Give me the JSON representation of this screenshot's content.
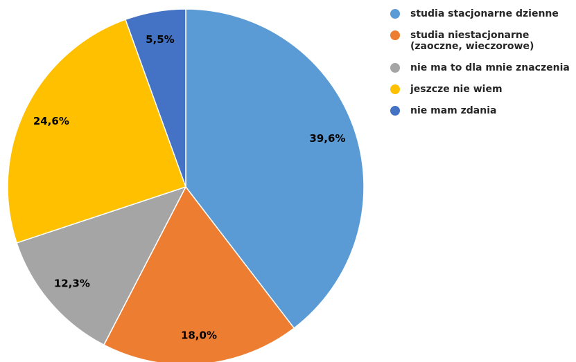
{
  "chart_data": {
    "type": "pie",
    "title": "",
    "start_angle_deg": 0,
    "direction": "clockwise",
    "legend_position": "right",
    "slices": [
      {
        "label": "studia stacjonarne dzienne",
        "value": 39.6,
        "display": "39,6%",
        "color": "#5B9BD5"
      },
      {
        "label": "studia niestacjonarne (zaoczne, wieczorowe)",
        "value": 18.0,
        "display": "18,0%",
        "color": "#ED7D31"
      },
      {
        "label": "nie ma to dla mnie znaczenia",
        "value": 12.3,
        "display": "12,3%",
        "color": "#A5A5A5"
      },
      {
        "label": "jeszcze nie wiem",
        "value": 24.6,
        "display": "24,6%",
        "color": "#FFC000"
      },
      {
        "label": "nie mam zdania",
        "value": 5.5,
        "display": "5,5%",
        "color": "#4472C4"
      }
    ]
  }
}
